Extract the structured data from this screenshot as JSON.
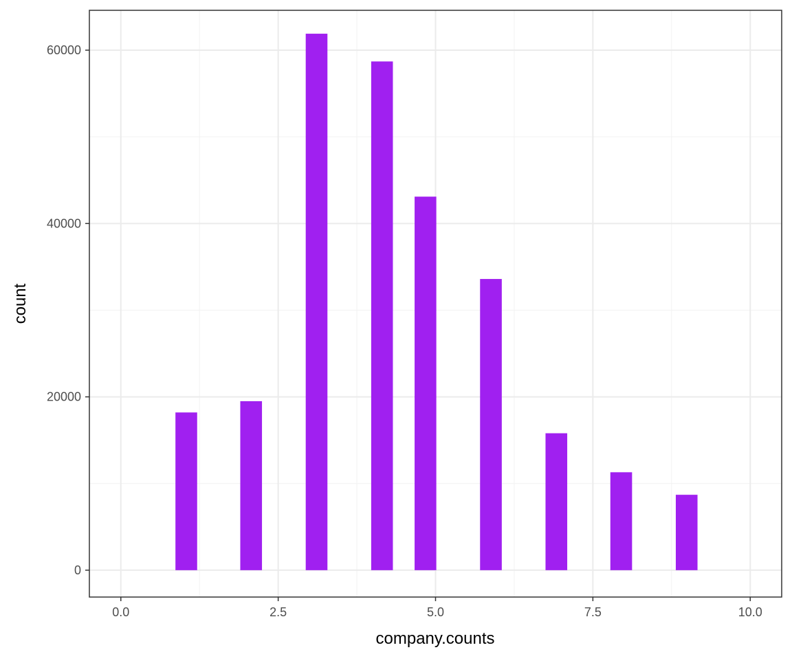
{
  "chart_data": {
    "type": "bar",
    "title": "",
    "xlabel": "company.counts",
    "ylabel": "count",
    "x": [
      1.04,
      2.07,
      3.11,
      4.15,
      4.84,
      5.88,
      6.92,
      7.95,
      8.99
    ],
    "values": [
      18200,
      19500,
      61900,
      58700,
      43100,
      33600,
      15800,
      11300,
      8700
    ],
    "bar_width": 0.345,
    "xlim": [
      -0.5,
      10.5
    ],
    "ylim": [
      -3100,
      64600
    ],
    "x_ticks": [
      0,
      2.5,
      5,
      7.5,
      10
    ],
    "x_tick_labels": [
      "0.0",
      "2.5",
      "5.0",
      "7.5",
      "10.0"
    ],
    "y_ticks": [
      0,
      20000,
      40000,
      60000
    ],
    "y_tick_labels": [
      "0",
      "20000",
      "40000",
      "60000"
    ],
    "grid": true,
    "bar_color": "#A020F0",
    "background": "#FFFFFF",
    "grid_color": "#EBEBEB",
    "border_color": "#333333"
  }
}
